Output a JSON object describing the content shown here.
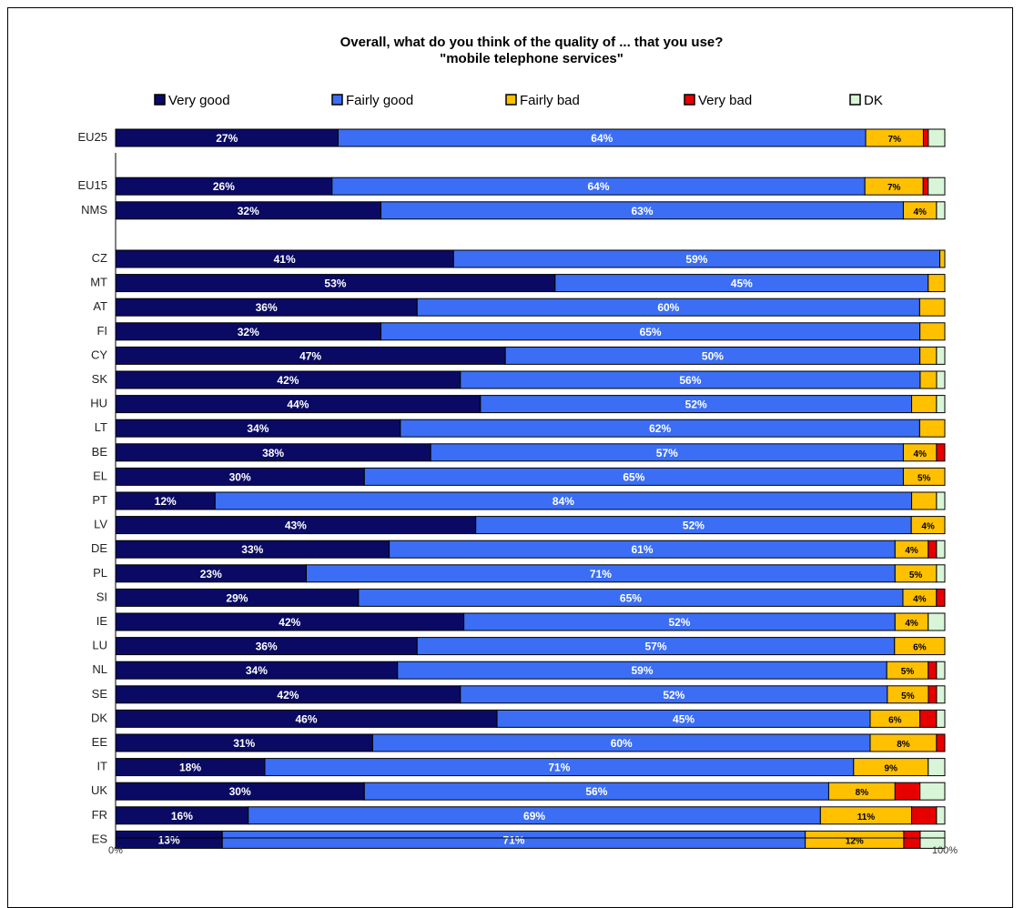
{
  "chart_data": {
    "type": "bar",
    "orientation": "horizontal",
    "stacked": true,
    "title": "Overall, what do you think of the quality of ... that you use?",
    "subtitle": "\"mobile telephone services\"",
    "legend_position": "top",
    "xlim": [
      0,
      100
    ],
    "x_ticks": [
      "0%",
      "100%"
    ],
    "series": [
      {
        "name": "Very good",
        "color": "#0a0a64"
      },
      {
        "name": "Fairly good",
        "color": "#3b6ef5"
      },
      {
        "name": "Fairly bad",
        "color": "#ffc000"
      },
      {
        "name": "Very bad",
        "color": "#e60000"
      },
      {
        "name": "DK",
        "color": "#d8f5d8"
      }
    ],
    "rows": [
      {
        "category": "EU25",
        "values": [
          27,
          64,
          7,
          0.6,
          2
        ],
        "labels": [
          "27%",
          "64%",
          "7%",
          "",
          ""
        ]
      },
      {
        "category": "",
        "values": []
      },
      {
        "category": "EU15",
        "values": [
          26,
          64,
          7,
          0.6,
          2
        ],
        "labels": [
          "26%",
          "64%",
          "7%",
          "",
          ""
        ]
      },
      {
        "category": "NMS",
        "values": [
          32,
          63,
          4,
          0,
          1
        ],
        "labels": [
          "32%",
          "63%",
          "4%",
          "",
          ""
        ]
      },
      {
        "category": "",
        "values": []
      },
      {
        "category": "CZ",
        "values": [
          41,
          59,
          0.6,
          0,
          0
        ],
        "labels": [
          "41%",
          "59%",
          "",
          "",
          ""
        ]
      },
      {
        "category": "MT",
        "values": [
          53,
          45,
          2,
          0,
          0
        ],
        "labels": [
          "53%",
          "45%",
          "",
          "",
          ""
        ]
      },
      {
        "category": "AT",
        "values": [
          36,
          60,
          3,
          0,
          0
        ],
        "labels": [
          "36%",
          "60%",
          "",
          "",
          ""
        ]
      },
      {
        "category": "FI",
        "values": [
          32,
          65,
          3,
          0,
          0
        ],
        "labels": [
          "32%",
          "65%",
          "",
          "",
          ""
        ]
      },
      {
        "category": "CY",
        "values": [
          47,
          50,
          2,
          0,
          1
        ],
        "labels": [
          "47%",
          "50%",
          "",
          "",
          ""
        ]
      },
      {
        "category": "SK",
        "values": [
          42,
          56,
          2,
          0,
          1
        ],
        "labels": [
          "42%",
          "56%",
          "",
          "",
          ""
        ]
      },
      {
        "category": "HU",
        "values": [
          44,
          52,
          3,
          0,
          1
        ],
        "labels": [
          "44%",
          "52%",
          "",
          "",
          ""
        ]
      },
      {
        "category": "LT",
        "values": [
          34,
          62,
          3,
          0,
          0
        ],
        "labels": [
          "34%",
          "62%",
          "",
          "",
          ""
        ]
      },
      {
        "category": "BE",
        "values": [
          38,
          57,
          4,
          1,
          0
        ],
        "labels": [
          "38%",
          "57%",
          "4%",
          "",
          ""
        ]
      },
      {
        "category": "EL",
        "values": [
          30,
          65,
          5,
          0,
          0
        ],
        "labels": [
          "30%",
          "65%",
          "5%",
          "",
          ""
        ]
      },
      {
        "category": "PT",
        "values": [
          12,
          84,
          3,
          0,
          1
        ],
        "labels": [
          "12%",
          "84%",
          "",
          "",
          ""
        ]
      },
      {
        "category": "LV",
        "values": [
          43,
          52,
          4,
          0,
          0
        ],
        "labels": [
          "43%",
          "52%",
          "4%",
          "",
          ""
        ]
      },
      {
        "category": "DE",
        "values": [
          33,
          61,
          4,
          1,
          1
        ],
        "labels": [
          "33%",
          "61%",
          "4%",
          "",
          ""
        ]
      },
      {
        "category": "PL",
        "values": [
          23,
          71,
          5,
          0,
          1
        ],
        "labels": [
          "23%",
          "71%",
          "5%",
          "",
          ""
        ]
      },
      {
        "category": "SI",
        "values": [
          29,
          65,
          4,
          1,
          0
        ],
        "labels": [
          "29%",
          "65%",
          "4%",
          "",
          ""
        ]
      },
      {
        "category": "IE",
        "values": [
          42,
          52,
          4,
          0,
          2
        ],
        "labels": [
          "42%",
          "52%",
          "4%",
          "",
          ""
        ]
      },
      {
        "category": "LU",
        "values": [
          36,
          57,
          6,
          0,
          0
        ],
        "labels": [
          "36%",
          "57%",
          "6%",
          "",
          ""
        ]
      },
      {
        "category": "NL",
        "values": [
          34,
          59,
          5,
          1,
          1
        ],
        "labels": [
          "34%",
          "59%",
          "5%",
          "",
          ""
        ]
      },
      {
        "category": "SE",
        "values": [
          42,
          52,
          5,
          1,
          1
        ],
        "labels": [
          "42%",
          "52%",
          "5%",
          "",
          ""
        ]
      },
      {
        "category": "DK",
        "values": [
          46,
          45,
          6,
          2,
          1
        ],
        "labels": [
          "46%",
          "45%",
          "6%",
          "",
          ""
        ]
      },
      {
        "category": "EE",
        "values": [
          31,
          60,
          8,
          1,
          0
        ],
        "labels": [
          "31%",
          "60%",
          "8%",
          "",
          ""
        ]
      },
      {
        "category": "IT",
        "values": [
          18,
          71,
          9,
          0,
          2
        ],
        "labels": [
          "18%",
          "71%",
          "9%",
          "",
          ""
        ]
      },
      {
        "category": "UK",
        "values": [
          30,
          56,
          8,
          3,
          3
        ],
        "labels": [
          "30%",
          "56%",
          "8%",
          "",
          ""
        ]
      },
      {
        "category": "FR",
        "values": [
          16,
          69,
          11,
          3,
          1
        ],
        "labels": [
          "16%",
          "69%",
          "11%",
          "",
          ""
        ]
      },
      {
        "category": "ES",
        "values": [
          13,
          71,
          12,
          2,
          3
        ],
        "labels": [
          "13%",
          "71%",
          "12%",
          "",
          ""
        ]
      }
    ]
  }
}
